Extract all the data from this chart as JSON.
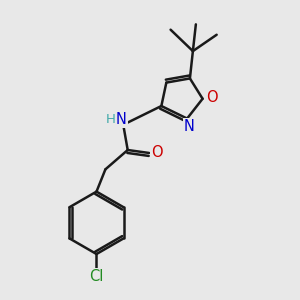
{
  "background_color": "#e8e8e8",
  "bond_color": "#1a1a1a",
  "bond_width": 1.8,
  "atom_colors": {
    "N": "#0000cc",
    "O_isox": "#cc0000",
    "O_carbonyl": "#cc0000",
    "Cl": "#228B22",
    "H": "#44aaaa",
    "C": "#1a1a1a"
  },
  "font_size": 10.5
}
